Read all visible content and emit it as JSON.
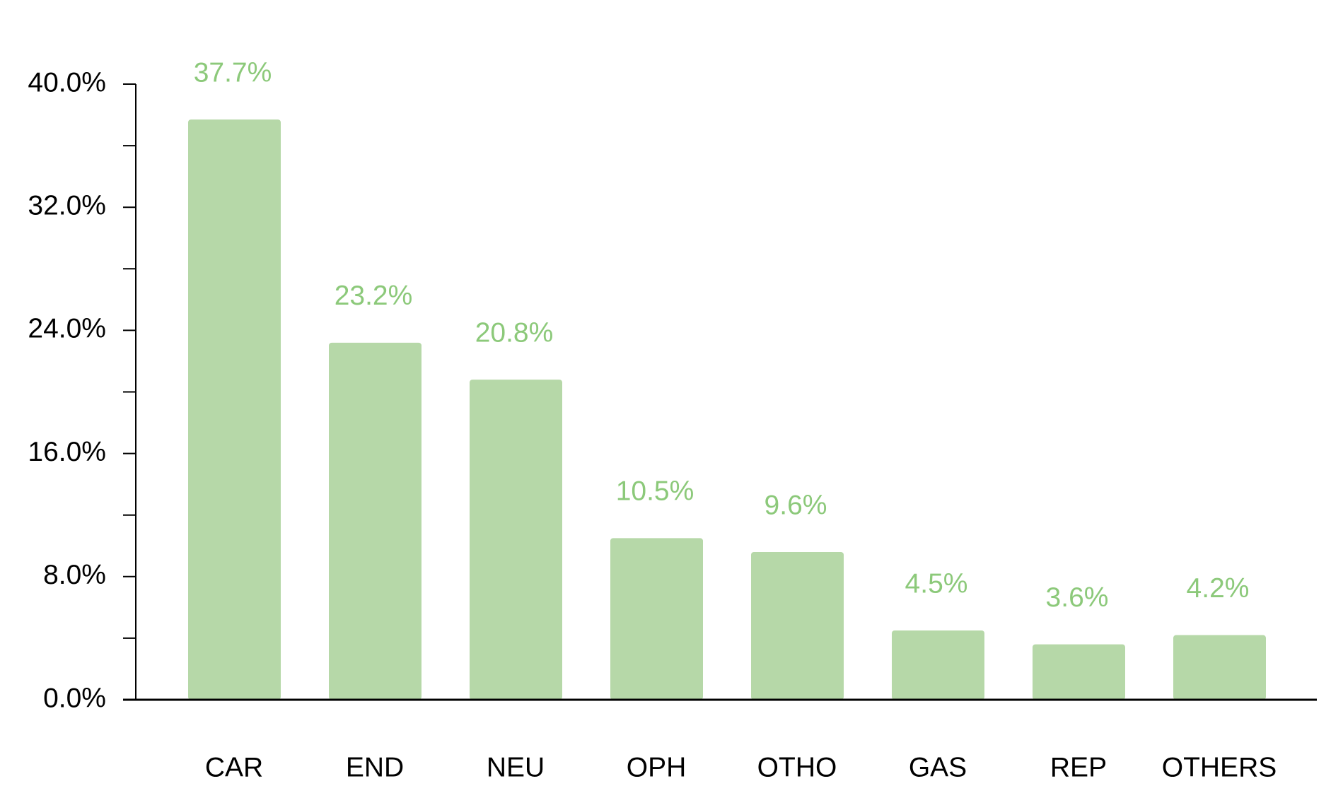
{
  "chart_data": {
    "type": "bar",
    "categories": [
      "CAR",
      "END",
      "NEU",
      "OPH",
      "OTHO",
      "GAS",
      "REP",
      "OTHERS"
    ],
    "values": [
      37.7,
      23.2,
      20.8,
      10.5,
      9.6,
      4.5,
      3.6,
      4.2
    ],
    "value_labels": [
      "37.7%",
      "23.2%",
      "20.8%",
      "10.5%",
      "9.6%",
      "4.5%",
      "3.6%",
      "4.2%"
    ],
    "color": "#b6d8a8",
    "label_color": "#8cc97a",
    "ylim": [
      0,
      40
    ],
    "yticks": [
      {
        "value": 0,
        "label": "0.0%"
      },
      {
        "value": 8,
        "label": "8.0%"
      },
      {
        "value": 16,
        "label": "16.0%"
      },
      {
        "value": 24,
        "label": "24.0%"
      },
      {
        "value": 32,
        "label": "32.0%"
      },
      {
        "value": 40,
        "label": "40.0%"
      }
    ],
    "minor_yticks": [
      4,
      12,
      20,
      28,
      36
    ],
    "grid": false
  }
}
